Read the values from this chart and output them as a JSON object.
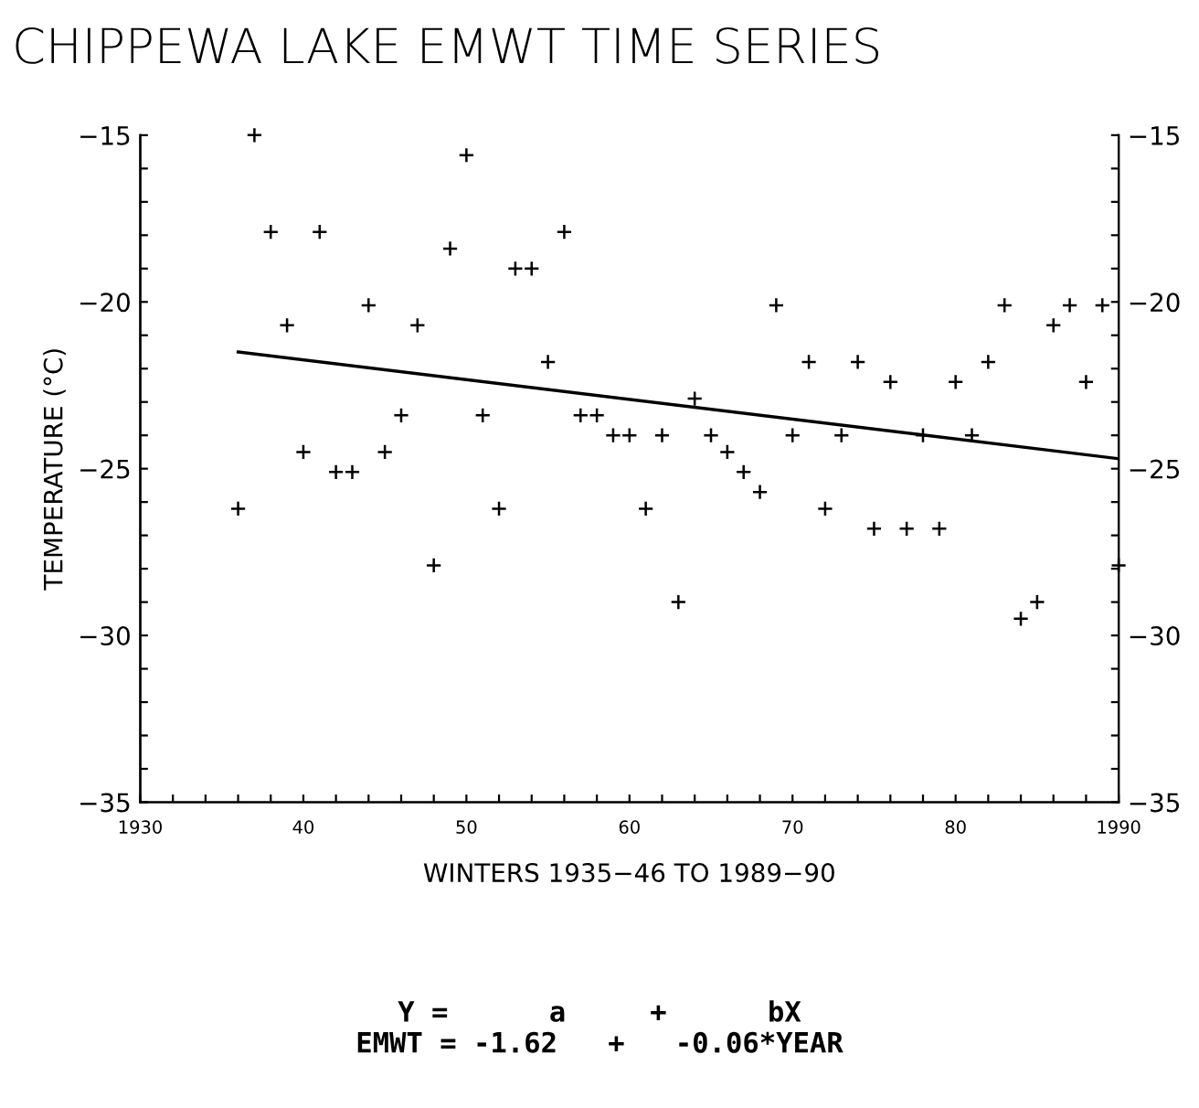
{
  "chart_data": {
    "type": "scatter",
    "title": "CHIPPEWA LAKE EMWT TIME SERIES",
    "xlabel": "WINTERS 1935−46 TO 1989−90",
    "ylabel": "TEMPERATURE (°C)",
    "series": [
      {
        "color": "#000000",
        "marker": "cross",
        "x": [
          1936,
          1937,
          1938,
          1939,
          1940,
          1941,
          1942,
          1943,
          1944,
          1945,
          1946,
          1947,
          1948,
          1949,
          1950,
          1951,
          1952,
          1953,
          1954,
          1955,
          1956,
          1957,
          1958,
          1959,
          1960,
          1961,
          1962,
          1963,
          1964,
          1965,
          1966,
          1967,
          1968,
          1969,
          1970,
          1971,
          1972,
          1973,
          1974,
          1975,
          1976,
          1977,
          1978,
          1979,
          1980,
          1981,
          1982,
          1983,
          1984,
          1985,
          1986,
          1987,
          1988,
          1989,
          1990
        ],
        "values": [
          -26.2,
          -15.0,
          -17.9,
          -20.7,
          -24.5,
          -17.9,
          -25.1,
          -25.1,
          -20.1,
          -24.5,
          -23.4,
          -20.7,
          -27.9,
          -18.4,
          -15.6,
          -23.4,
          -26.2,
          -19.0,
          -19.0,
          -21.8,
          -17.9,
          -23.4,
          -23.4,
          -24.0,
          -24.0,
          -26.2,
          -24.0,
          -29.0,
          -22.9,
          -24.0,
          -24.5,
          -25.1,
          -25.7,
          -20.1,
          -24.0,
          -21.8,
          -26.2,
          -24.0,
          -21.8,
          -26.8,
          -22.4,
          -26.8,
          -24.0,
          -26.8,
          -22.4,
          -24.0,
          -21.8,
          -20.1,
          -29.5,
          -29.0,
          -20.7,
          -20.1,
          -22.4,
          -20.1,
          -27.9
        ]
      },
      {
        "type": "line",
        "color": "#000000",
        "line_style": "solid",
        "x": [
          1936,
          1990
        ],
        "values": [
          -21.5,
          -24.7
        ]
      }
    ],
    "xlim": [
      1930,
      1990
    ],
    "xticks": [
      {
        "value": 1930,
        "label": "1930"
      },
      {
        "value": 1932,
        "label": null
      },
      {
        "value": 1934,
        "label": null
      },
      {
        "value": 1936,
        "label": null
      },
      {
        "value": 1938,
        "label": null
      },
      {
        "value": 1940,
        "label": "40"
      },
      {
        "value": 1942,
        "label": null
      },
      {
        "value": 1944,
        "label": null
      },
      {
        "value": 1946,
        "label": null
      },
      {
        "value": 1948,
        "label": null
      },
      {
        "value": 1950,
        "label": "50"
      },
      {
        "value": 1952,
        "label": null
      },
      {
        "value": 1954,
        "label": null
      },
      {
        "value": 1956,
        "label": null
      },
      {
        "value": 1958,
        "label": null
      },
      {
        "value": 1960,
        "label": "60"
      },
      {
        "value": 1962,
        "label": null
      },
      {
        "value": 1964,
        "label": null
      },
      {
        "value": 1966,
        "label": null
      },
      {
        "value": 1968,
        "label": null
      },
      {
        "value": 1970,
        "label": "70"
      },
      {
        "value": 1972,
        "label": null
      },
      {
        "value": 1974,
        "label": null
      },
      {
        "value": 1976,
        "label": null
      },
      {
        "value": 1978,
        "label": null
      },
      {
        "value": 1980,
        "label": "80"
      },
      {
        "value": 1982,
        "label": null
      },
      {
        "value": 1984,
        "label": null
      },
      {
        "value": 1986,
        "label": null
      },
      {
        "value": 1988,
        "label": null
      },
      {
        "value": 1990,
        "label": "1990"
      }
    ],
    "ylim": [
      -35,
      -15
    ],
    "yticks": [
      {
        "value": -35,
        "label": "−35"
      },
      {
        "value": -34,
        "label": null
      },
      {
        "value": -33,
        "label": null
      },
      {
        "value": -32,
        "label": null
      },
      {
        "value": -31,
        "label": null
      },
      {
        "value": -30,
        "label": "−30"
      },
      {
        "value": -29,
        "label": null
      },
      {
        "value": -28,
        "label": null
      },
      {
        "value": -27,
        "label": null
      },
      {
        "value": -26,
        "label": null
      },
      {
        "value": -25,
        "label": "−25"
      },
      {
        "value": -24,
        "label": null
      },
      {
        "value": -23,
        "label": null
      },
      {
        "value": -22,
        "label": null
      },
      {
        "value": -21,
        "label": null
      },
      {
        "value": -20,
        "label": "−20"
      },
      {
        "value": -19,
        "label": null
      },
      {
        "value": -18,
        "label": null
      },
      {
        "value": -17,
        "label": null
      },
      {
        "value": -16,
        "label": null
      },
      {
        "value": -15,
        "label": "−15"
      }
    ],
    "y2lim": [
      -35,
      -15
    ],
    "y2ticks": [
      {
        "value": -35,
        "label": "−35"
      },
      {
        "value": -34,
        "label": null
      },
      {
        "value": -33,
        "label": null
      },
      {
        "value": -32,
        "label": null
      },
      {
        "value": -31,
        "label": null
      },
      {
        "value": -30,
        "label": "−30"
      },
      {
        "value": -29,
        "label": null
      },
      {
        "value": -28,
        "label": null
      },
      {
        "value": -27,
        "label": null
      },
      {
        "value": -26,
        "label": null
      },
      {
        "value": -25,
        "label": "−25"
      },
      {
        "value": -24,
        "label": null
      },
      {
        "value": -23,
        "label": null
      },
      {
        "value": -22,
        "label": null
      },
      {
        "value": -21,
        "label": null
      },
      {
        "value": -20,
        "label": "−20"
      },
      {
        "value": -19,
        "label": null
      },
      {
        "value": -18,
        "label": null
      },
      {
        "value": -17,
        "label": null
      },
      {
        "value": -16,
        "label": null
      },
      {
        "value": -15,
        "label": "−15"
      }
    ],
    "grid": false,
    "legend": false,
    "annotations": [
      "Y =      a     +      bX",
      "EMWT = -1.62   +   -0.06*YEAR"
    ]
  }
}
